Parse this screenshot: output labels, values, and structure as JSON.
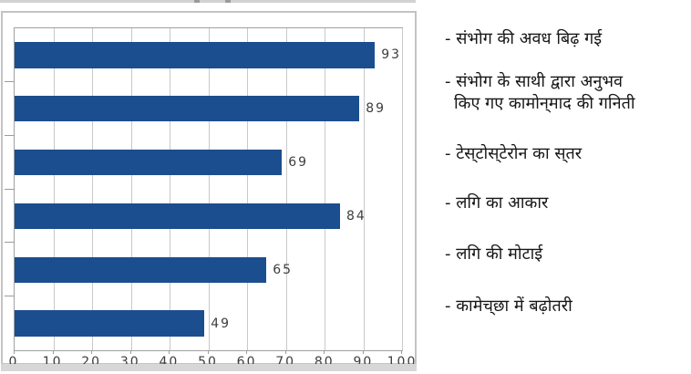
{
  "chart_data": {
    "type": "bar",
    "orientation": "horizontal",
    "title": "",
    "xlabel": "",
    "ylabel": "",
    "xlim": [
      0,
      100
    ],
    "x_ticks": [
      0,
      10,
      20,
      30,
      40,
      50,
      60,
      70,
      80,
      90,
      100
    ],
    "grid": "vertical gridlines on",
    "legend_position": "right (category labels listed beside bars)",
    "categories": [
      "संभोग की अवध बिढ़ गई",
      "संभोग के साथी द्वारा अनुभव किए गए कामोन्‌माद की गनिती",
      "टेस्‌टोस्‌टेरोन का स्‌तर",
      "लगि का आकार",
      "लगि की मोटाई",
      "कामेच्‌छा में बढ़ोतरी"
    ],
    "values": [
      93,
      89,
      69,
      84,
      65,
      49
    ],
    "value_labels_shown": true,
    "bar_color": "#1b4e8e"
  },
  "category_labels": [
    {
      "line1": "- संभोग की अवध बिढ़ गई",
      "line2": ""
    },
    {
      "line1": "- संभोग के साथी द्वारा अनुभव",
      "line2": "किए गए कामोन्‌माद की गनिती"
    },
    {
      "line1": "- टेस्‌टोस्‌टेरोन का स्‌तर",
      "line2": ""
    },
    {
      "line1": "- लगि का आकार",
      "line2": ""
    },
    {
      "line1": "- लगि की मोटाई",
      "line2": ""
    },
    {
      "line1": "- कामेच्‌छा में बढ़ोतरी",
      "line2": ""
    }
  ],
  "colors": {
    "bar_fill": "#1b4e8e",
    "gridline": "#c9c9c9",
    "plot_border": "#a0a0a0",
    "panel_border": "#c3c3c3",
    "bottom_strip": "#d7d7d7",
    "value_text": "#3d3d3d",
    "tick_text": "#3d3d3d",
    "label_text": "#161616"
  }
}
